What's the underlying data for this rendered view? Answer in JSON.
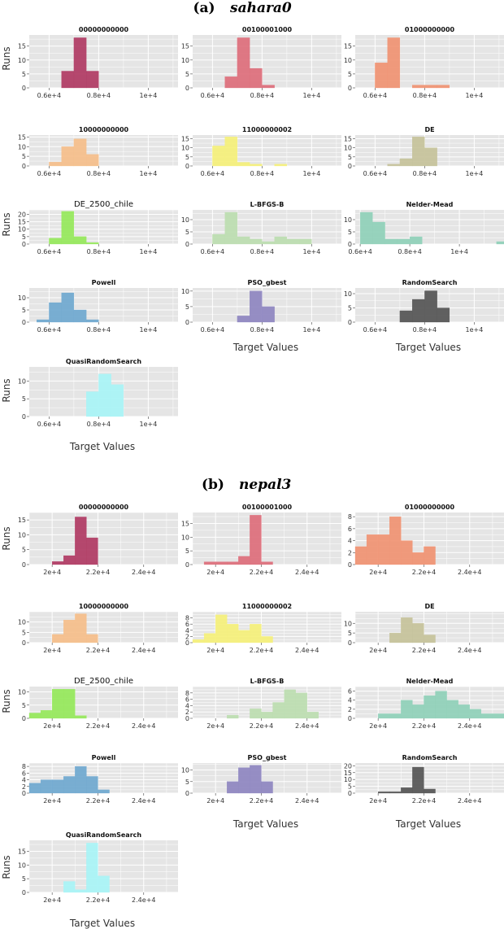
{
  "sections": [
    {
      "label": "(a)",
      "name": "sahara0",
      "x_ticks": [
        "0.6e+4",
        "0.8e+4",
        "1e+4"
      ],
      "y_label": "Runs",
      "x_label": "Target Values"
    },
    {
      "label": "(b)",
      "name": "nepal3",
      "x_ticks": [
        "2e+4",
        "2.2e+4",
        "2.4e+4"
      ],
      "y_label": "Runs",
      "x_label": "Target Values"
    }
  ],
  "chart_data": [
    {
      "type": "histogram",
      "section": 0,
      "title": "00000000000",
      "color": "#B03A63",
      "xlim": [
        5200,
        11200
      ],
      "ylim": [
        0,
        19
      ],
      "x_ticks": [
        6000,
        8000,
        10000
      ],
      "y_ticks": [
        0,
        5,
        10,
        15
      ],
      "bin_edges": [
        6500,
        7000,
        7500,
        8000
      ],
      "counts": [
        6,
        18,
        6
      ]
    },
    {
      "type": "histogram",
      "section": 0,
      "title": "00100001000",
      "color": "#DD6E7B",
      "xlim": [
        5200,
        11200
      ],
      "ylim": [
        0,
        19
      ],
      "x_ticks": [
        6000,
        8000,
        10000
      ],
      "y_ticks": [
        0,
        5,
        10,
        15
      ],
      "bin_edges": [
        6500,
        7000,
        7500,
        8000,
        8500
      ],
      "counts": [
        4,
        18,
        7,
        1
      ]
    },
    {
      "type": "histogram",
      "section": 0,
      "title": "01000000000",
      "color": "#F09272",
      "xlim": [
        5200,
        11200
      ],
      "ylim": [
        0,
        19
      ],
      "x_ticks": [
        6000,
        8000,
        10000
      ],
      "y_ticks": [
        0,
        5,
        10,
        15
      ],
      "bin_edges": [
        6000,
        6500,
        7000,
        7500,
        8000,
        8500,
        9000
      ],
      "counts": [
        9,
        18,
        0,
        1,
        1,
        1
      ]
    },
    {
      "type": "histogram",
      "section": 0,
      "title": "10000000000",
      "color": "#F5BE8A",
      "xlim": [
        5200,
        11200
      ],
      "ylim": [
        0,
        16
      ],
      "x_ticks": [
        6000,
        8000,
        10000
      ],
      "y_ticks": [
        0,
        5,
        10,
        15
      ],
      "bin_edges": [
        6000,
        6500,
        7000,
        7500,
        8000
      ],
      "counts": [
        2,
        10,
        14,
        6
      ]
    },
    {
      "type": "histogram",
      "section": 0,
      "title": "11000000002",
      "color": "#F5F07A",
      "xlim": [
        5200,
        11200
      ],
      "ylim": [
        0,
        17
      ],
      "x_ticks": [
        6000,
        8000,
        10000
      ],
      "y_ticks": [
        0,
        5,
        10,
        15
      ],
      "bin_edges": [
        6000,
        6500,
        7000,
        7500,
        8000,
        8500,
        9000
      ],
      "counts": [
        11,
        16,
        2,
        1,
        0,
        1
      ]
    },
    {
      "type": "histogram",
      "section": 0,
      "title": "DE",
      "color": "#C5C29A",
      "xlim": [
        5200,
        11200
      ],
      "ylim": [
        0,
        17
      ],
      "x_ticks": [
        6000,
        8000,
        10000
      ],
      "y_ticks": [
        0,
        5,
        10,
        15
      ],
      "bin_edges": [
        6500,
        7000,
        7500,
        8000,
        8500
      ],
      "counts": [
        1,
        4,
        16,
        10
      ]
    },
    {
      "type": "histogram",
      "section": 0,
      "title": "DE_2500_chile",
      "color": "#95E85A",
      "xlim": [
        5200,
        11200
      ],
      "ylim": [
        0,
        23
      ],
      "x_ticks": [
        6000,
        8000,
        10000
      ],
      "y_ticks": [
        0,
        5,
        10,
        15,
        20
      ],
      "bin_edges": [
        6000,
        6500,
        7000,
        7500,
        8000
      ],
      "counts": [
        4,
        22,
        5,
        1
      ]
    },
    {
      "type": "histogram",
      "section": 0,
      "title": "L-BFGS-B",
      "color": "#BCDDB0",
      "xlim": [
        5200,
        11200
      ],
      "ylim": [
        0,
        14
      ],
      "x_ticks": [
        6000,
        8000,
        10000
      ],
      "y_ticks": [
        0,
        5,
        10
      ],
      "bin_edges": [
        6000,
        6500,
        7000,
        7500,
        8000,
        8500,
        9000,
        9500,
        10000
      ],
      "counts": [
        4,
        13,
        3,
        2,
        1,
        3,
        2,
        2
      ]
    },
    {
      "type": "histogram",
      "section": 0,
      "title": "Nelder-Mead",
      "color": "#8FD0B8",
      "xlim": [
        5800,
        11800
      ],
      "ylim": [
        0,
        14
      ],
      "x_ticks": [
        6000,
        8000,
        10000
      ],
      "y_ticks": [
        0,
        5,
        10
      ],
      "bin_edges": [
        6000,
        6500,
        7000,
        7500,
        8000,
        8500,
        9000,
        9500,
        10000,
        10500,
        11000,
        11500,
        12000
      ],
      "counts": [
        13,
        9,
        2,
        2,
        3,
        0,
        0,
        0,
        0,
        0,
        0,
        1
      ]
    },
    {
      "type": "histogram",
      "section": 0,
      "title": "Powell",
      "color": "#6FA8CF",
      "xlim": [
        5200,
        11200
      ],
      "ylim": [
        0,
        14
      ],
      "x_ticks": [
        6000,
        8000,
        10000
      ],
      "y_ticks": [
        0,
        5,
        10
      ],
      "bin_edges": [
        5500,
        6000,
        6500,
        7000,
        7500,
        8000
      ],
      "counts": [
        1,
        8,
        12,
        5,
        1
      ]
    },
    {
      "type": "histogram",
      "section": 0,
      "title": "PSO_gbest",
      "color": "#8E86C0",
      "xlim": [
        5200,
        11200
      ],
      "ylim": [
        0,
        11
      ],
      "x_ticks": [
        6000,
        8000,
        10000
      ],
      "y_ticks": [
        0,
        5,
        10
      ],
      "bin_edges": [
        7000,
        7500,
        8000,
        8500
      ],
      "counts": [
        2,
        10,
        5
      ]
    },
    {
      "type": "histogram",
      "section": 0,
      "title": "RandomSearch",
      "color": "#555555",
      "xlim": [
        5200,
        11200
      ],
      "ylim": [
        0,
        12
      ],
      "x_ticks": [
        6000,
        8000,
        10000
      ],
      "y_ticks": [
        0,
        5,
        10
      ],
      "bin_edges": [
        7000,
        7500,
        8000,
        8500,
        9000
      ],
      "counts": [
        4,
        8,
        11,
        5
      ]
    },
    {
      "type": "histogram",
      "section": 0,
      "title": "QuasiRandomSearch",
      "color": "#A8F4F6",
      "xlim": [
        5200,
        11200
      ],
      "ylim": [
        0,
        14
      ],
      "x_ticks": [
        6000,
        8000,
        10000
      ],
      "y_ticks": [
        0,
        5,
        10
      ],
      "bin_edges": [
        7500,
        8000,
        8500,
        9000
      ],
      "counts": [
        7,
        12,
        9
      ]
    },
    {
      "type": "histogram",
      "section": 1,
      "title": "00000000000",
      "color": "#B03A63",
      "xlim": [
        19000,
        25500
      ],
      "ylim": [
        0,
        17.5
      ],
      "x_ticks": [
        20000,
        22000,
        24000
      ],
      "y_ticks": [
        0,
        5,
        10,
        15
      ],
      "bin_edges": [
        20000,
        20500,
        21000,
        21500,
        22000
      ],
      "counts": [
        1,
        3,
        16,
        9
      ]
    },
    {
      "type": "histogram",
      "section": 1,
      "title": "00100001000",
      "color": "#DD6E7B",
      "xlim": [
        19000,
        25500
      ],
      "ylim": [
        0,
        19
      ],
      "x_ticks": [
        20000,
        22000,
        24000
      ],
      "y_ticks": [
        0,
        5,
        10,
        15
      ],
      "bin_edges": [
        19500,
        20000,
        20500,
        21000,
        21500,
        22000,
        22500
      ],
      "counts": [
        1,
        1,
        1,
        3,
        18,
        1
      ]
    },
    {
      "type": "histogram",
      "section": 1,
      "title": "01000000000",
      "color": "#F09272",
      "xlim": [
        19000,
        25500
      ],
      "ylim": [
        0,
        8.7
      ],
      "x_ticks": [
        20000,
        22000,
        24000
      ],
      "y_ticks": [
        0,
        2,
        4,
        6,
        8
      ],
      "bin_edges": [
        19000,
        19500,
        20000,
        20500,
        21000,
        21500,
        22000,
        22500
      ],
      "counts": [
        3,
        5,
        5,
        8,
        4,
        2,
        3
      ]
    },
    {
      "type": "histogram",
      "section": 1,
      "title": "10000000000",
      "color": "#F5BE8A",
      "xlim": [
        19000,
        25500
      ],
      "ylim": [
        0,
        15
      ],
      "x_ticks": [
        20000,
        22000,
        24000
      ],
      "y_ticks": [
        0,
        5,
        10
      ],
      "bin_edges": [
        20000,
        20500,
        21000,
        21500,
        22000
      ],
      "counts": [
        4,
        11,
        14,
        4
      ]
    },
    {
      "type": "histogram",
      "section": 1,
      "title": "11000000002",
      "color": "#F5F07A",
      "xlim": [
        19000,
        25500
      ],
      "ylim": [
        0,
        10
      ],
      "x_ticks": [
        20000,
        22000,
        24000
      ],
      "y_ticks": [
        0,
        2,
        4,
        6,
        8
      ],
      "bin_edges": [
        19000,
        19500,
        20000,
        20500,
        21000,
        21500,
        22000,
        22500
      ],
      "counts": [
        1,
        3,
        9,
        6,
        4,
        6,
        2
      ]
    },
    {
      "type": "histogram",
      "section": 1,
      "title": "DE",
      "color": "#C5C29A",
      "xlim": [
        19000,
        25500
      ],
      "ylim": [
        0,
        16
      ],
      "x_ticks": [
        20000,
        22000,
        24000
      ],
      "y_ticks": [
        0,
        5,
        10
      ],
      "bin_edges": [
        20500,
        21000,
        21500,
        22000,
        22500
      ],
      "counts": [
        5,
        13,
        10,
        4
      ]
    },
    {
      "type": "histogram",
      "section": 1,
      "title": "DE_2500_chile",
      "color": "#95E85A",
      "xlim": [
        19000,
        25500
      ],
      "ylim": [
        0,
        12
      ],
      "x_ticks": [
        20000,
        22000,
        24000
      ],
      "y_ticks": [
        0,
        5,
        10
      ],
      "bin_edges": [
        19000,
        19500,
        20000,
        20500,
        21000,
        21500
      ],
      "counts": [
        2,
        3,
        11,
        11,
        1
      ]
    },
    {
      "type": "histogram",
      "section": 1,
      "title": "L-BFGS-B",
      "color": "#BCDDB0",
      "xlim": [
        19000,
        25500
      ],
      "ylim": [
        0,
        10
      ],
      "x_ticks": [
        20000,
        22000,
        24000
      ],
      "y_ticks": [
        0,
        2,
        4,
        6,
        8
      ],
      "bin_edges": [
        20500,
        21000,
        21500,
        22000,
        22500,
        23000,
        23500,
        24000,
        24500
      ],
      "counts": [
        1,
        0,
        3,
        2,
        5,
        9,
        8,
        2,
        1
      ]
    },
    {
      "type": "histogram",
      "section": 1,
      "title": "Nelder-Mead",
      "color": "#8FD0B8",
      "xlim": [
        19000,
        25500
      ],
      "ylim": [
        0,
        7
      ],
      "x_ticks": [
        20000,
        22000,
        24000
      ],
      "y_ticks": [
        0,
        2,
        4,
        6
      ],
      "bin_edges": [
        20000,
        20500,
        21000,
        21500,
        22000,
        22500,
        23000,
        23500,
        24000,
        24500,
        25000,
        25500
      ],
      "counts": [
        1,
        1,
        4,
        3,
        5,
        6,
        4,
        3,
        2,
        1,
        1
      ]
    },
    {
      "type": "histogram",
      "section": 1,
      "title": "Powell",
      "color": "#6FA8CF",
      "xlim": [
        19000,
        25500
      ],
      "ylim": [
        0,
        9
      ],
      "x_ticks": [
        20000,
        22000,
        24000
      ],
      "y_ticks": [
        0,
        2,
        4,
        6,
        8
      ],
      "bin_edges": [
        19000,
        19500,
        20000,
        20500,
        21000,
        21500,
        22000,
        22500
      ],
      "counts": [
        3,
        4,
        4,
        5,
        8,
        5,
        1
      ]
    },
    {
      "type": "histogram",
      "section": 1,
      "title": "PSO_gbest",
      "color": "#8E86C0",
      "xlim": [
        19000,
        25500
      ],
      "ylim": [
        0,
        13
      ],
      "x_ticks": [
        20000,
        22000,
        24000
      ],
      "y_ticks": [
        0,
        5,
        10
      ],
      "bin_edges": [
        20500,
        21000,
        21500,
        22000,
        22500
      ],
      "counts": [
        5,
        11,
        12,
        5
      ]
    },
    {
      "type": "histogram",
      "section": 1,
      "title": "RandomSearch",
      "color": "#555555",
      "xlim": [
        19000,
        25500
      ],
      "ylim": [
        0,
        22
      ],
      "x_ticks": [
        20000,
        22000,
        24000
      ],
      "y_ticks": [
        0,
        5,
        10,
        15,
        20
      ],
      "bin_edges": [
        20000,
        20500,
        21000,
        21500,
        22000,
        22500
      ],
      "counts": [
        1,
        1,
        4,
        19,
        3
      ]
    },
    {
      "type": "histogram",
      "section": 1,
      "title": "QuasiRandomSearch",
      "color": "#A8F4F6",
      "xlim": [
        19000,
        25500
      ],
      "ylim": [
        0,
        19
      ],
      "x_ticks": [
        20000,
        22000,
        24000
      ],
      "y_ticks": [
        0,
        5,
        10,
        15
      ],
      "bin_edges": [
        20500,
        21000,
        21500,
        22000,
        22500
      ],
      "counts": [
        4,
        1,
        18,
        6
      ]
    }
  ]
}
